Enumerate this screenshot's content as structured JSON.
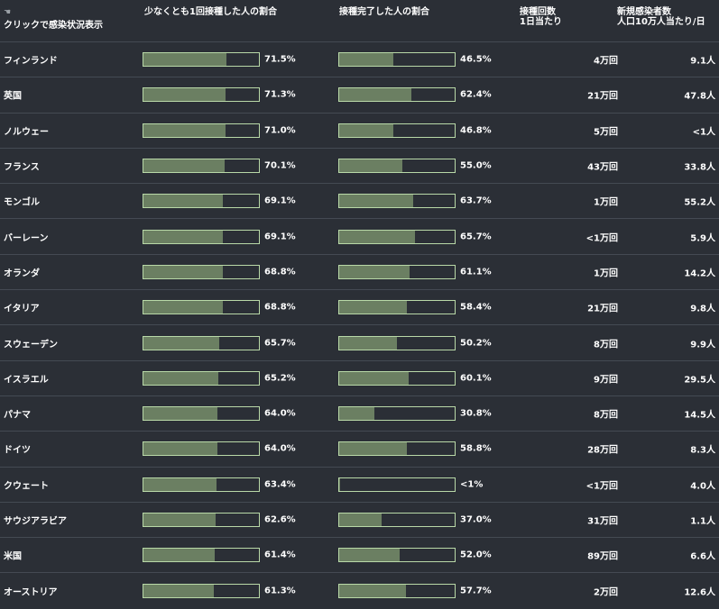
{
  "header": {
    "click_hint": "クリックで感染状況表示",
    "col_at_least_one": "少なくとも1回接種した人の割合",
    "col_fully": "接種完了した人の割合",
    "col_doses_line1": "接種回数",
    "col_doses_line2": "1日当たり",
    "col_cases_line1": "新規感染者数",
    "col_cases_line2": "人口10万人当たり/日"
  },
  "colors": {
    "background": "#2b2f36",
    "bar_fill": "#6b7f62",
    "bar_border": "#b9d9a8"
  },
  "rows": [
    {
      "country": "フィンランド",
      "one_pct": 71.5,
      "one_label": "71.5%",
      "full_pct": 46.5,
      "full_label": "46.5%",
      "doses": "4万回",
      "cases": "9.1人"
    },
    {
      "country": "英国",
      "one_pct": 71.3,
      "one_label": "71.3%",
      "full_pct": 62.4,
      "full_label": "62.4%",
      "doses": "21万回",
      "cases": "47.8人"
    },
    {
      "country": "ノルウェー",
      "one_pct": 71.0,
      "one_label": "71.0%",
      "full_pct": 46.8,
      "full_label": "46.8%",
      "doses": "5万回",
      "cases": "<1人"
    },
    {
      "country": "フランス",
      "one_pct": 70.1,
      "one_label": "70.1%",
      "full_pct": 55.0,
      "full_label": "55.0%",
      "doses": "43万回",
      "cases": "33.8人"
    },
    {
      "country": "モンゴル",
      "one_pct": 69.1,
      "one_label": "69.1%",
      "full_pct": 63.7,
      "full_label": "63.7%",
      "doses": "1万回",
      "cases": "55.2人"
    },
    {
      "country": "バーレーン",
      "one_pct": 69.1,
      "one_label": "69.1%",
      "full_pct": 65.7,
      "full_label": "65.7%",
      "doses": "<1万回",
      "cases": "5.9人"
    },
    {
      "country": "オランダ",
      "one_pct": 68.8,
      "one_label": "68.8%",
      "full_pct": 61.1,
      "full_label": "61.1%",
      "doses": "1万回",
      "cases": "14.2人"
    },
    {
      "country": "イタリア",
      "one_pct": 68.8,
      "one_label": "68.8%",
      "full_pct": 58.4,
      "full_label": "58.4%",
      "doses": "21万回",
      "cases": "9.8人"
    },
    {
      "country": "スウェーデン",
      "one_pct": 65.7,
      "one_label": "65.7%",
      "full_pct": 50.2,
      "full_label": "50.2%",
      "doses": "8万回",
      "cases": "9.9人"
    },
    {
      "country": "イスラエル",
      "one_pct": 65.2,
      "one_label": "65.2%",
      "full_pct": 60.1,
      "full_label": "60.1%",
      "doses": "9万回",
      "cases": "29.5人"
    },
    {
      "country": "パナマ",
      "one_pct": 64.0,
      "one_label": "64.0%",
      "full_pct": 30.8,
      "full_label": "30.8%",
      "doses": "8万回",
      "cases": "14.5人"
    },
    {
      "country": "ドイツ",
      "one_pct": 64.0,
      "one_label": "64.0%",
      "full_pct": 58.8,
      "full_label": "58.8%",
      "doses": "28万回",
      "cases": "8.3人"
    },
    {
      "country": "クウェート",
      "one_pct": 63.4,
      "one_label": "63.4%",
      "full_pct": 0.5,
      "full_label": "<1%",
      "doses": "<1万回",
      "cases": "4.0人"
    },
    {
      "country": "サウジアラビア",
      "one_pct": 62.6,
      "one_label": "62.6%",
      "full_pct": 37.0,
      "full_label": "37.0%",
      "doses": "31万回",
      "cases": "1.1人"
    },
    {
      "country": "米国",
      "one_pct": 61.4,
      "one_label": "61.4%",
      "full_pct": 52.0,
      "full_label": "52.0%",
      "doses": "89万回",
      "cases": "6.6人"
    },
    {
      "country": "オーストリア",
      "one_pct": 61.3,
      "one_label": "61.3%",
      "full_pct": 57.7,
      "full_label": "57.7%",
      "doses": "2万回",
      "cases": "12.6人"
    }
  ]
}
